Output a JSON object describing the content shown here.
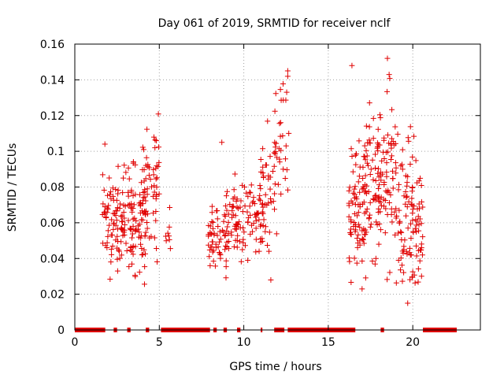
{
  "chart_data": {
    "type": "scatter",
    "title": "Day 061 of 2019, SRMTID for receiver nclf",
    "xlabel": "GPS time / hours",
    "ylabel": "SRMTID / TECUs",
    "xlim": [
      0,
      24
    ],
    "ylim": [
      0,
      0.16
    ],
    "xticks": [
      0,
      5,
      10,
      15,
      20
    ],
    "xtick_labels": [
      "0",
      "5",
      "10",
      "15",
      "20"
    ],
    "yticks": [
      0,
      0.02,
      0.04,
      0.06,
      0.08,
      0.1,
      0.12,
      0.14,
      0.16
    ],
    "ytick_labels": [
      "0",
      "0.02",
      "0.04",
      "0.06",
      "0.08",
      "0.1",
      "0.12",
      "0.14",
      "0.16"
    ],
    "grid": true,
    "marker": "+",
    "series_color": "#e00000",
    "clusters": [
      {
        "x_range": [
          1.6,
          2.6
        ],
        "y_center": 0.062,
        "spread": 0.018,
        "count": 55
      },
      {
        "x_range": [
          2.5,
          3.5
        ],
        "y_center": 0.06,
        "spread": 0.02,
        "count": 60
      },
      {
        "x_range": [
          3.3,
          4.2
        ],
        "y_center": 0.058,
        "spread": 0.018,
        "count": 55
      },
      {
        "x_range": [
          4.0,
          5.0
        ],
        "y_center": 0.075,
        "spread": 0.022,
        "count": 60
      },
      {
        "x_range": [
          5.3,
          5.8
        ],
        "y_center": 0.055,
        "spread": 0.008,
        "count": 8
      },
      {
        "x_range": [
          7.9,
          9.0
        ],
        "y_center": 0.052,
        "spread": 0.012,
        "count": 50
      },
      {
        "x_range": [
          8.8,
          10.0
        ],
        "y_center": 0.06,
        "spread": 0.015,
        "count": 60
      },
      {
        "x_range": [
          10.0,
          11.2
        ],
        "y_center": 0.065,
        "spread": 0.013,
        "count": 50
      },
      {
        "x_range": [
          11.0,
          12.0
        ],
        "y_center": 0.075,
        "spread": 0.02,
        "count": 40
      },
      {
        "x_range": [
          11.8,
          12.7
        ],
        "y_center": 0.11,
        "spread": 0.022,
        "count": 30
      },
      {
        "x_range": [
          16.2,
          17.2
        ],
        "y_center": 0.07,
        "spread": 0.025,
        "count": 70
      },
      {
        "x_range": [
          17.0,
          18.0
        ],
        "y_center": 0.08,
        "spread": 0.028,
        "count": 70
      },
      {
        "x_range": [
          18.0,
          19.0
        ],
        "y_center": 0.08,
        "spread": 0.03,
        "count": 70
      },
      {
        "x_range": [
          19.0,
          20.0
        ],
        "y_center": 0.065,
        "spread": 0.025,
        "count": 60
      },
      {
        "x_range": [
          19.8,
          20.6
        ],
        "y_center": 0.06,
        "spread": 0.025,
        "count": 50
      }
    ],
    "outliers": [
      {
        "x": 16.4,
        "y": 0.148
      },
      {
        "x": 18.5,
        "y": 0.152
      },
      {
        "x": 18.6,
        "y": 0.143
      },
      {
        "x": 12.6,
        "y": 0.145
      },
      {
        "x": 12.6,
        "y": 0.142
      },
      {
        "x": 8.7,
        "y": 0.105
      },
      {
        "x": 11.6,
        "y": 0.028
      },
      {
        "x": 17.0,
        "y": 0.023
      },
      {
        "x": 19.7,
        "y": 0.015
      }
    ],
    "zero_line_segments": [
      [
        0.0,
        1.8
      ],
      [
        2.3,
        2.5
      ],
      [
        3.1,
        3.3
      ],
      [
        4.2,
        4.4
      ],
      [
        5.1,
        8.0
      ],
      [
        8.2,
        8.4
      ],
      [
        8.8,
        9.0
      ],
      [
        9.6,
        9.8
      ],
      [
        11.0,
        11.1
      ],
      [
        11.8,
        12.4
      ],
      [
        12.6,
        16.6
      ],
      [
        18.1,
        18.3
      ],
      [
        20.6,
        22.6
      ]
    ]
  }
}
